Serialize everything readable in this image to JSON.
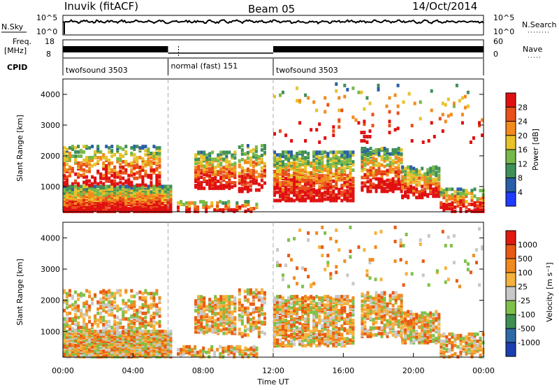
{
  "header": {
    "station": "Inuvik (fitACF)",
    "beam": "Beam 05",
    "date": "14/Oct/2014"
  },
  "top_panels": {
    "nsky_label": "N.Sky",
    "nsky_ticks": [
      "10^5",
      "10^0"
    ],
    "nsearch_label": "N.Search",
    "nsearch_ticks": [
      "10^5",
      "10^0"
    ],
    "freq_label_line1": "Freq.",
    "freq_label_line2": "[MHz]",
    "freq_ticks": [
      "18",
      "8"
    ],
    "nave_label": "Nave",
    "nave_ticks": [
      "60",
      "0"
    ],
    "cpid_label": "CPID",
    "cpid_segments": [
      {
        "label": "twofsound 3503",
        "start_hour": 0,
        "end_hour": 6
      },
      {
        "label": "normal (fast) 151",
        "start_hour": 6,
        "end_hour": 12
      },
      {
        "label": "twofsound 3503",
        "start_hour": 12,
        "end_hour": 24
      }
    ]
  },
  "chart_data": [
    {
      "type": "heatmap",
      "name": "power",
      "ylabel": "Slant Range [km]",
      "yticks": [
        "1000",
        "2000",
        "3000",
        "4000"
      ],
      "ylim": [
        180,
        4500
      ],
      "xlim": [
        0,
        24
      ],
      "colorbar_label": "Power [dB]",
      "colorbar_ticks": [
        "4",
        "8",
        "12",
        "16",
        "20",
        "24",
        "28"
      ],
      "colorbar_colors": [
        "#1f3cff",
        "#2a5fa8",
        "#3f8f5a",
        "#77b84a",
        "#e8c22a",
        "#f28a1e",
        "#e8501a",
        "#e01010"
      ]
    },
    {
      "type": "heatmap",
      "name": "velocity",
      "ylabel": "Slant Range [km]",
      "yticks": [
        "1000",
        "2000",
        "3000",
        "4000"
      ],
      "ylim": [
        180,
        4500
      ],
      "xlim": [
        0,
        24
      ],
      "xlabel": "Time UT",
      "xticks": [
        "00:00",
        "04:00",
        "08:00",
        "12:00",
        "16:00",
        "20:00",
        "00:00"
      ],
      "colorbar_label": "Velocity [m s⁻¹]",
      "colorbar_ticks": [
        "1000",
        "500",
        "100",
        "25",
        "-25",
        "-100",
        "-500",
        "-1000"
      ],
      "colorbar_colors": [
        "#1c3fb0",
        "#2f6aa8",
        "#3f8f55",
        "#7fc04a",
        "#c8c8c8",
        "#f5b23c",
        "#f08a1e",
        "#e85a14",
        "#e01a10"
      ]
    }
  ]
}
